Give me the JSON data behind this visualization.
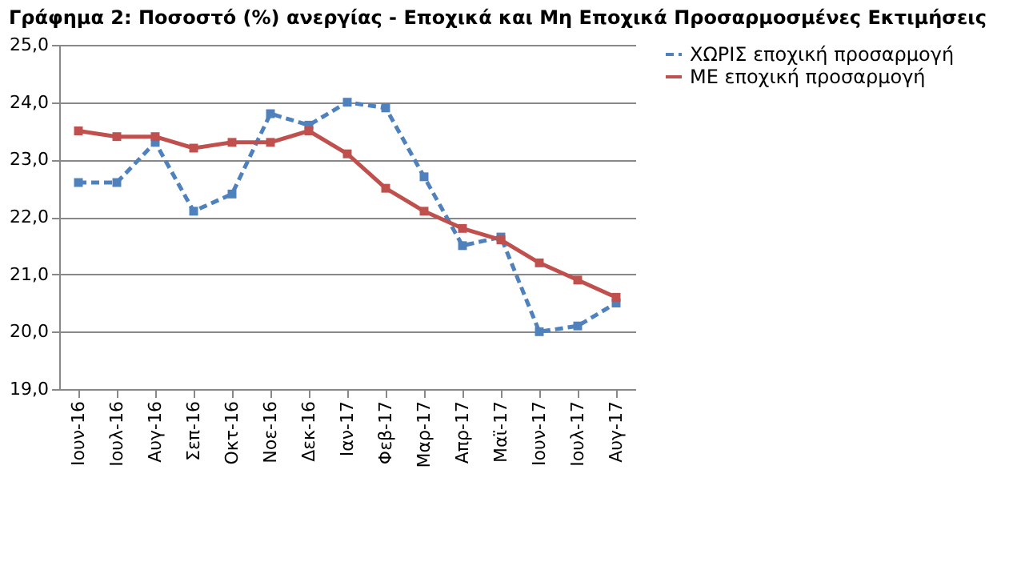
{
  "chart_data": {
    "type": "line",
    "title": "Γράφημα 2: Ποσοστό (%) ανεργίας - Εποχικά και Μη Εποχικά Προσαρμοσμένες Εκτιμήσεις",
    "categories": [
      "Ιουν-16",
      "Ιουλ-16",
      "Αυγ-16",
      "Σεπ-16",
      "Οκτ-16",
      "Νοε-16",
      "Δεκ-16",
      "Ιαν-17",
      "Φεβ-17",
      "Μαρ-17",
      "Απρ-17",
      "Μαϊ-17",
      "Ιουν-17",
      "Ιουλ-17",
      "Αυγ-17"
    ],
    "series": [
      {
        "name": "ΧΩΡΙΣ εποχική προσαρμογή",
        "color": "#4f81bd",
        "line_style": "dashed",
        "values": [
          22.6,
          22.6,
          23.3,
          22.1,
          22.4,
          23.8,
          23.6,
          24.0,
          23.9,
          22.7,
          21.5,
          21.65,
          20.0,
          20.1,
          20.5
        ]
      },
      {
        "name": "ΜΕ εποχική προσαρμογή",
        "color": "#c0504d",
        "line_style": "solid",
        "values": [
          23.5,
          23.4,
          23.4,
          23.2,
          23.3,
          23.3,
          23.5,
          23.1,
          22.5,
          22.1,
          21.8,
          21.6,
          21.2,
          20.9,
          20.6
        ]
      }
    ],
    "ylim": [
      19,
      25
    ],
    "yticks": [
      {
        "value": 19,
        "label": "19,0"
      },
      {
        "value": 20,
        "label": "20,0"
      },
      {
        "value": 21,
        "label": "21,0"
      },
      {
        "value": 22,
        "label": "22,0"
      },
      {
        "value": 23,
        "label": "23,0"
      },
      {
        "value": 24,
        "label": "24,0"
      },
      {
        "value": 25,
        "label": "25,0"
      }
    ],
    "grid": "y",
    "legend": "right",
    "marker": "square"
  }
}
